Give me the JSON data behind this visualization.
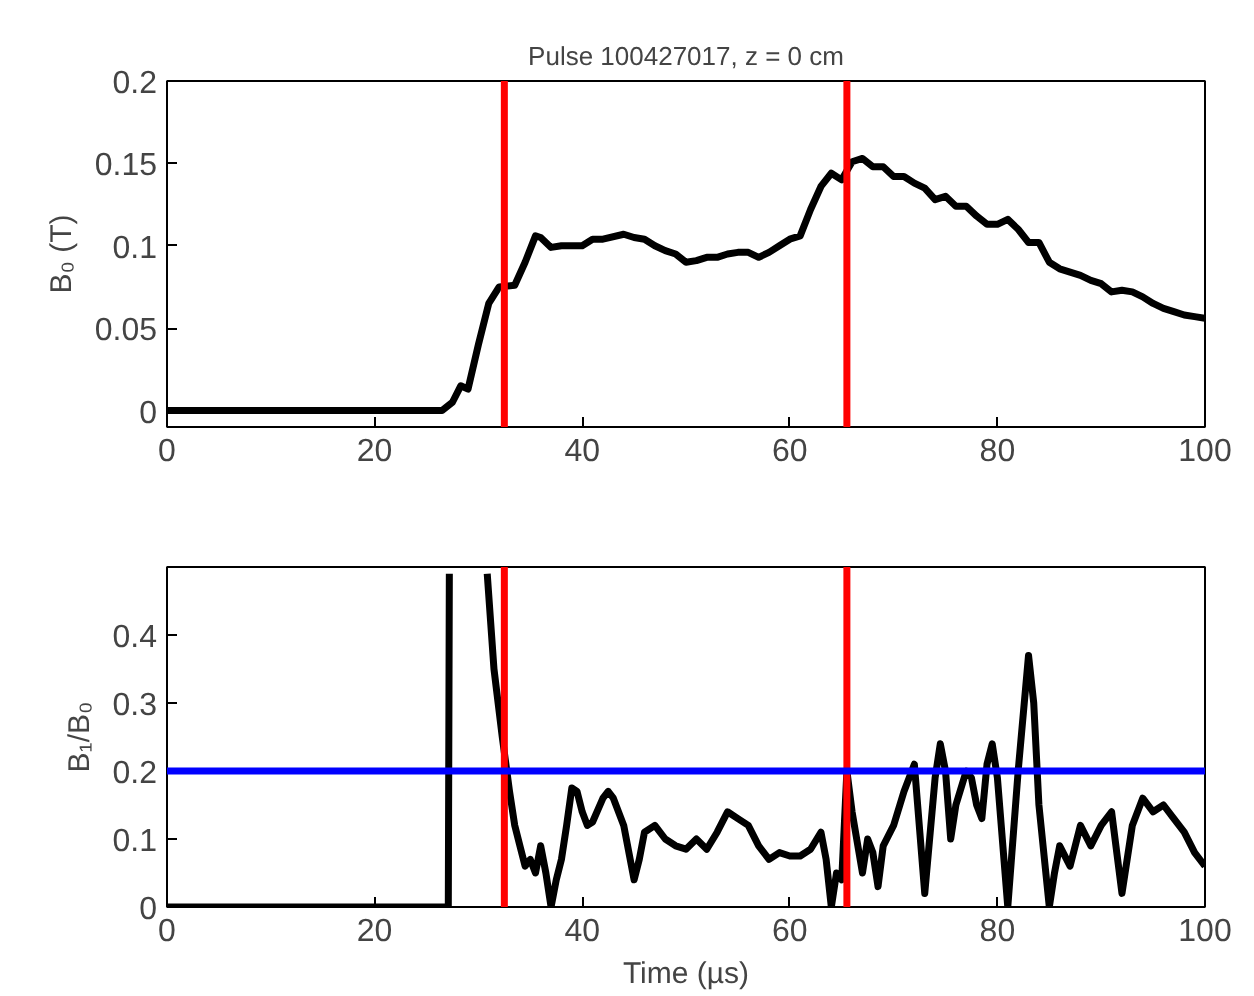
{
  "chart_data": [
    {
      "type": "line",
      "title": "Pulse 100427017, z = 0 cm",
      "ylabel": "B₀ (T)",
      "xlim": [
        0,
        100
      ],
      "xticks": [
        0,
        20,
        40,
        60,
        80,
        100
      ],
      "ylim": [
        -0.01,
        0.2
      ],
      "yticks": [
        0,
        0.05,
        0.1,
        0.15,
        0.2
      ],
      "grid": false,
      "marker": "none",
      "line_style": "solid",
      "x": [
        0,
        26.5,
        27.5,
        28.3,
        29,
        30,
        31,
        32,
        33.5,
        34.5,
        35.5,
        36,
        37,
        38,
        40,
        41,
        42,
        44,
        45,
        46,
        47,
        48,
        49,
        50,
        51,
        52,
        53,
        54,
        55,
        56,
        57,
        58,
        59,
        60,
        61,
        62,
        63,
        64,
        65,
        66,
        67,
        68,
        69,
        70,
        71,
        72,
        73,
        74,
        75,
        76,
        77,
        78,
        79,
        80,
        81,
        82,
        83,
        84,
        85,
        86,
        87,
        88,
        89,
        90,
        91,
        92,
        93,
        94,
        95,
        96,
        97,
        98,
        99,
        100
      ],
      "series": [
        {
          "color": "#000000",
          "values": [
            0,
            0,
            0.005,
            0.015,
            0.013,
            0.04,
            0.065,
            0.075,
            0.076,
            0.09,
            0.106,
            0.105,
            0.099,
            0.1,
            0.1,
            0.104,
            0.104,
            0.107,
            0.105,
            0.104,
            0.1,
            0.097,
            0.095,
            0.09,
            0.091,
            0.093,
            0.093,
            0.095,
            0.096,
            0.096,
            0.093,
            0.096,
            0.1,
            0.104,
            0.106,
            0.122,
            0.136,
            0.144,
            0.14,
            0.151,
            0.153,
            0.148,
            0.148,
            0.142,
            0.142,
            0.138,
            0.135,
            0.128,
            0.13,
            0.124,
            0.124,
            0.118,
            0.113,
            0.113,
            0.116,
            0.11,
            0.102,
            0.102,
            0.09,
            0.086,
            0.084,
            0.082,
            0.079,
            0.077,
            0.072,
            0.073,
            0.072,
            0.069,
            0.065,
            0.062,
            0.06,
            0.058,
            0.057,
            0.056
          ]
        }
      ],
      "ref_lines": [
        {
          "axis": "x",
          "value": 32.5,
          "color": "#ff0000"
        },
        {
          "axis": "x",
          "value": 65.5,
          "color": "#ff0000"
        }
      ]
    },
    {
      "type": "line",
      "xlabel": "Time (µs)",
      "ylabel": "B₁/B₀",
      "xlim": [
        0,
        100
      ],
      "xticks": [
        0,
        20,
        40,
        60,
        80,
        100
      ],
      "ylim": [
        0,
        0.5
      ],
      "yticks": [
        0,
        0.1,
        0.2,
        0.3,
        0.4
      ],
      "grid": false,
      "marker": "none",
      "line_style": "solid",
      "x": [
        0,
        27.1,
        27.2,
        29,
        30.85,
        31.5,
        32.3,
        33,
        33.5,
        34,
        34.5,
        35,
        35.5,
        36,
        36.5,
        37,
        37.5,
        38,
        38.5,
        39,
        39.5,
        40,
        40.5,
        41,
        42,
        42.5,
        43,
        44,
        45,
        45.5,
        46,
        47,
        48,
        49,
        50,
        51,
        52,
        53,
        54,
        55,
        56,
        57,
        58,
        59,
        60,
        61,
        62,
        63,
        63.5,
        64,
        64.5,
        65,
        65.5,
        66,
        67,
        67.5,
        68,
        68.5,
        69,
        70,
        71,
        72,
        73,
        74,
        74.5,
        75,
        75.5,
        76,
        77,
        77.5,
        78,
        78.5,
        79,
        79.5,
        80,
        81,
        82,
        83,
        83.5,
        84,
        85,
        85.5,
        86,
        87,
        88,
        89,
        90,
        91,
        92,
        93,
        94,
        95,
        96,
        97,
        98,
        99,
        100
      ],
      "series": [
        {
          "color": "#000000",
          "values": [
            0,
            0,
            0.49,
            null,
            0.49,
            0.35,
            0.25,
            0.17,
            0.12,
            0.09,
            0.06,
            0.07,
            0.05,
            0.09,
            0.05,
            0,
            0.04,
            0.07,
            0.12,
            0.175,
            0.17,
            0.14,
            0.12,
            0.125,
            0.16,
            0.17,
            0.16,
            0.12,
            0.04,
            0.07,
            0.11,
            0.12,
            0.1,
            0.09,
            0.085,
            0.1,
            0.085,
            0.11,
            0.14,
            0.13,
            0.12,
            0.09,
            0.07,
            0.08,
            0.075,
            0.075,
            0.085,
            0.11,
            0.07,
            0,
            0.05,
            0.04,
            0.2,
            0.14,
            0.05,
            0.1,
            0.08,
            0.03,
            0.09,
            0.12,
            0.17,
            0.21,
            0.02,
            0.19,
            0.24,
            0.2,
            0.1,
            0.15,
            0.2,
            0.19,
            0.15,
            0.13,
            0.21,
            0.24,
            0.19,
            0,
            0.2,
            0.37,
            0.3,
            0.15,
            0,
            0.05,
            0.09,
            0.06,
            0.12,
            0.09,
            0.12,
            0.14,
            0.02,
            0.12,
            0.16,
            0.14,
            0.15,
            0.13,
            0.11,
            0.08,
            0.06
          ]
        }
      ],
      "ref_lines": [
        {
          "axis": "x",
          "value": 32.5,
          "color": "#ff0000"
        },
        {
          "axis": "x",
          "value": 65.5,
          "color": "#ff0000"
        },
        {
          "axis": "y",
          "value": 0.2,
          "color": "#0000ff"
        }
      ]
    }
  ]
}
